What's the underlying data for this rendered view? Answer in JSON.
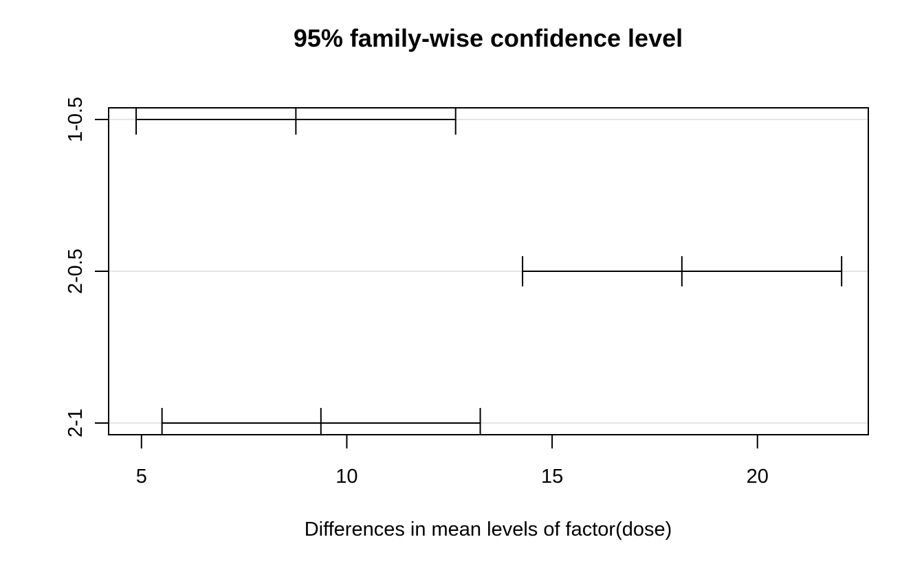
{
  "chart_data": {
    "type": "interval",
    "title": "95% family-wise confidence level",
    "xlabel": "Differences in mean levels of factor(dose)",
    "ylabel": "",
    "xlim": [
      4.2,
      22.7
    ],
    "xticks": [
      5,
      10,
      15,
      20
    ],
    "xtick_labels": [
      "5",
      "10",
      "15",
      "20"
    ],
    "categories": [
      "1-0.5",
      "2-0.5",
      "2-1"
    ],
    "intervals": [
      {
        "label": "1-0.5",
        "lwr": 4.87,
        "diff": 8.76,
        "upr": 12.65
      },
      {
        "label": "2-0.5",
        "lwr": 14.28,
        "diff": 18.16,
        "upr": 22.05
      },
      {
        "label": "2-1",
        "lwr": 5.5,
        "diff": 9.37,
        "upr": 13.25
      }
    ],
    "grid": "horizontal-at-categories",
    "line_color": "#000000",
    "grid_color": "#c8c8c8"
  }
}
